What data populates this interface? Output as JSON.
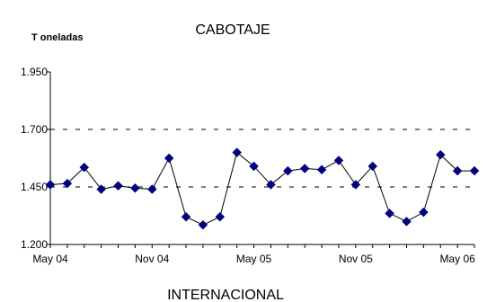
{
  "chart_data": {
    "type": "line",
    "title": "CABOTAJE",
    "ylabel": "T oneladas",
    "xlabel": "",
    "ylim": [
      1200,
      1950
    ],
    "yticks": [
      "1.200",
      "1.450",
      "1.700",
      "1.950"
    ],
    "ytick_values": [
      1200,
      1450,
      1700,
      1950
    ],
    "gridlines_dashed_at": [
      1450,
      1700
    ],
    "xtick_labels": [
      "May 04",
      "Nov 04",
      "May 05",
      "Nov 05",
      "May 06"
    ],
    "xtick_positions": [
      0,
      6,
      12,
      18,
      24
    ],
    "x": [
      "May 04",
      "Jun 04",
      "Jul 04",
      "Aug 04",
      "Sep 04",
      "Oct 04",
      "Nov 04",
      "Dec 04",
      "Jan 05",
      "Feb 05",
      "Mar 05",
      "Apr 05",
      "May 05",
      "Jun 05",
      "Jul 05",
      "Aug 05",
      "Sep 05",
      "Oct 05",
      "Nov 05",
      "Dec 05",
      "Jan 06",
      "Feb 06",
      "Mar 06",
      "Apr 06",
      "May 06",
      "Jun 06"
    ],
    "series": [
      {
        "values": [
          1460,
          1465,
          1535,
          1440,
          1455,
          1445,
          1440,
          1575,
          1320,
          1285,
          1320,
          1600,
          1540,
          1460,
          1520,
          1530,
          1525,
          1565,
          1460,
          1540,
          1335,
          1300,
          1340,
          1590,
          1520,
          1520
        ],
        "color": "#000080"
      }
    ],
    "grid": false,
    "legend": "none"
  },
  "next_chart": {
    "title": "INTERNACIONAL"
  }
}
